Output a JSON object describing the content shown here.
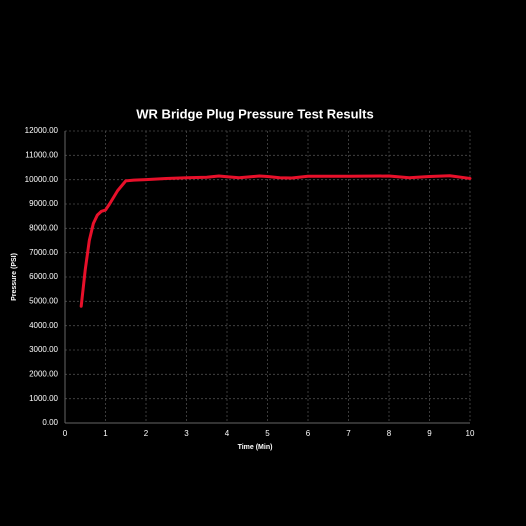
{
  "chart_data": {
    "type": "line",
    "title": "WR Bridge Plug Pressure Test Results",
    "x_label": "Time (Min)",
    "y_label": "Pressure (PSI)",
    "x": [
      0.4,
      0.5,
      0.6,
      0.7,
      0.8,
      0.9,
      1.0,
      1.1,
      1.3,
      1.5,
      1.7,
      2.0,
      2.5,
      3.0,
      3.5,
      3.8,
      4.0,
      4.3,
      4.8,
      5.0,
      5.3,
      5.6,
      6.0,
      7.0,
      8.0,
      8.5,
      9.0,
      9.5,
      10.0
    ],
    "series": [
      {
        "name": "Pressure",
        "color": "#e8102a",
        "values": [
          4800,
          6300,
          7500,
          8200,
          8550,
          8700,
          8750,
          9000,
          9550,
          9950,
          9980,
          10000,
          10050,
          10080,
          10100,
          10150,
          10120,
          10080,
          10150,
          10130,
          10080,
          10070,
          10140,
          10140,
          10150,
          10080,
          10130,
          10160,
          10050
        ]
      }
    ],
    "xlim": [
      0,
      10
    ],
    "xticks": [
      0,
      1,
      2,
      3,
      4,
      5,
      6,
      7,
      8,
      9,
      10
    ],
    "ylim": [
      0,
      12000
    ],
    "yticks": [
      {
        "value": 0,
        "label": "0.00"
      },
      {
        "value": 1000,
        "label": "1000.00"
      },
      {
        "value": 2000,
        "label": "2000.00"
      },
      {
        "value": 3000,
        "label": "3000.00"
      },
      {
        "value": 4000,
        "label": "4000.00"
      },
      {
        "value": 5000,
        "label": "5000.00"
      },
      {
        "value": 6000,
        "label": "6000.00"
      },
      {
        "value": 7000,
        "label": "7000.00"
      },
      {
        "value": 8000,
        "label": "8000.00"
      },
      {
        "value": 9000,
        "label": "9000.00"
      },
      {
        "value": 10000,
        "label": "10000.00"
      },
      {
        "value": 11000,
        "label": "11000.00"
      },
      {
        "value": 12000,
        "label": "12000.00"
      }
    ],
    "grid": true
  }
}
